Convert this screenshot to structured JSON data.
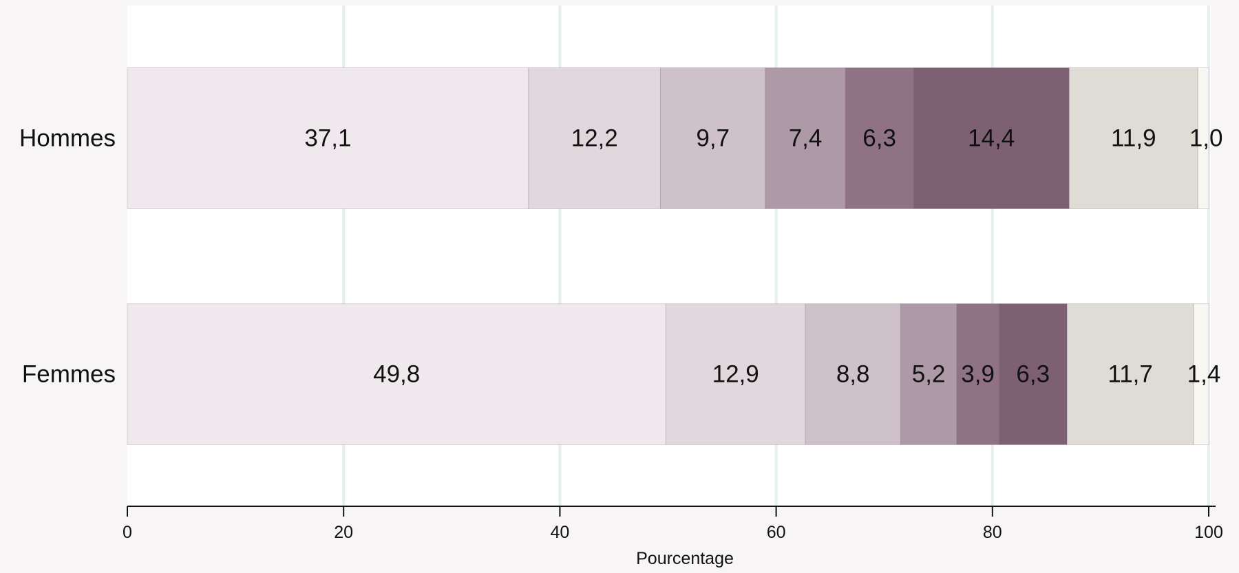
{
  "chart_data": {
    "type": "bar",
    "orientation": "horizontal",
    "stacked": true,
    "categories": [
      "Hommes",
      "Femmes"
    ],
    "series": [
      {
        "values": [
          37.1,
          49.8
        ],
        "labels": [
          "37,1",
          "49,8"
        ],
        "color": "#efe9ed"
      },
      {
        "values": [
          12.2,
          12.9
        ],
        "labels": [
          "12,2",
          "12,9"
        ],
        "color": "#e0d8dd"
      },
      {
        "values": [
          9.7,
          8.8
        ],
        "labels": [
          "9,7",
          "8,8"
        ],
        "color": "#cec1ca"
      },
      {
        "values": [
          7.4,
          5.2
        ],
        "labels": [
          "7,4",
          "5,2"
        ],
        "color": "#ae9aa7"
      },
      {
        "values": [
          6.3,
          3.9
        ],
        "labels": [
          "6,3",
          "3,9"
        ],
        "color": "#8f7384"
      },
      {
        "values": [
          14.4,
          6.3
        ],
        "labels": [
          "14,4",
          "6,3"
        ],
        "color": "#7e6073"
      },
      {
        "values": [
          11.9,
          11.7
        ],
        "labels": [
          "11,9",
          "11,7"
        ],
        "color": "#dfdbd5"
      },
      {
        "values": [
          1.0,
          1.4
        ],
        "labels": [
          "1,0",
          "1,4"
        ],
        "color": "#f7f6f2"
      }
    ],
    "xlabel": "Pourcentage",
    "xlim": [
      0,
      100
    ],
    "xticks": [
      0,
      20,
      40,
      60,
      80,
      100
    ],
    "xtick_labels": [
      "0",
      "20",
      "40",
      "60",
      "80",
      "100"
    ],
    "grid": true,
    "colors": {
      "background": "#f7f5f6",
      "plot_background": "#ffffff",
      "grid": "#e6eef0",
      "axis": "#111111"
    }
  }
}
